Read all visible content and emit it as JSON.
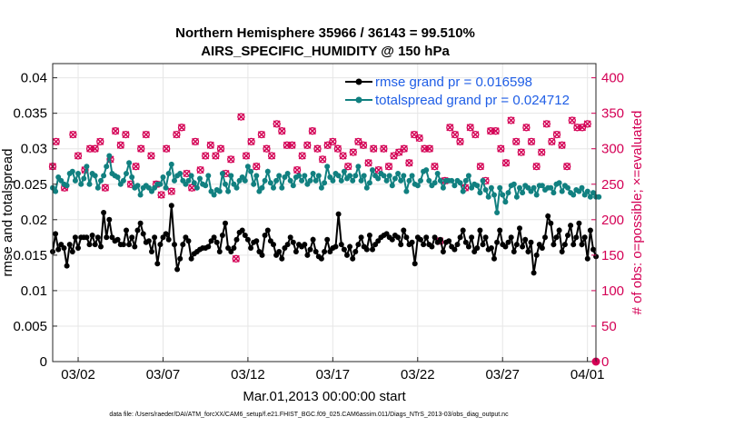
{
  "chart_data": {
    "type": "line",
    "title": "Northern Hemisphere 35966 / 36143 = 99.510%",
    "subtitle": "AIRS_SPECIFIC_HUMIDITY @ 150 hPa",
    "xlabel": "Mar.01,2013 00:00:00 start",
    "ylabel": "rmse and totalspread",
    "ylabel_right": "# of obs: o=possible; ×=evaluated",
    "ylim": [
      0,
      0.042
    ],
    "ylim_right": [
      0,
      420
    ],
    "xlim_days": [
      -0.5,
      31.5
    ],
    "y_ticks": [
      "0",
      "0.005",
      "0.01",
      "0.015",
      "0.02",
      "0.025",
      "0.03",
      "0.035",
      "0.04"
    ],
    "y_tick_values": [
      0,
      0.005,
      0.01,
      0.015,
      0.02,
      0.025,
      0.03,
      0.035,
      0.04
    ],
    "y_right_ticks": [
      "0",
      "50",
      "100",
      "150",
      "200",
      "250",
      "300",
      "350",
      "400"
    ],
    "y_right_tick_values": [
      0,
      50,
      100,
      150,
      200,
      250,
      300,
      350,
      400
    ],
    "x_ticks": [
      "03/02",
      "03/07",
      "03/12",
      "03/17",
      "03/22",
      "03/27",
      "04/01"
    ],
    "x_tick_days": [
      1,
      6,
      11,
      16,
      21,
      26,
      31
    ],
    "grid": true,
    "legend": "top-right",
    "series": [
      {
        "name": "rmse grand pr = 0.016598",
        "color": "#000000",
        "marker": "dot",
        "values": [
          0.0155,
          0.018,
          0.0158,
          0.0165,
          0.016,
          0.0135,
          0.0165,
          0.0155,
          0.0175,
          0.016,
          0.0175,
          0.0175,
          0.0175,
          0.0165,
          0.0178,
          0.0165,
          0.0175,
          0.0162,
          0.021,
          0.0175,
          0.02,
          0.0175,
          0.017,
          0.0172,
          0.0165,
          0.0165,
          0.0185,
          0.0165,
          0.0175,
          0.0162,
          0.0185,
          0.0195,
          0.018,
          0.0168,
          0.017,
          0.0155,
          0.0175,
          0.0138,
          0.0165,
          0.0175,
          0.018,
          0.0172,
          0.022,
          0.0165,
          0.013,
          0.0145,
          0.0165,
          0.0175,
          0.017,
          0.0145,
          0.0152,
          0.0155,
          0.0158,
          0.016,
          0.016,
          0.0162,
          0.017,
          0.0175,
          0.0168,
          0.0155,
          0.0178,
          0.0195,
          0.016,
          0.0155,
          0.016,
          0.0172,
          0.0182,
          0.0185,
          0.0178,
          0.0172,
          0.016,
          0.0168,
          0.017,
          0.0155,
          0.015,
          0.0178,
          0.0185,
          0.017,
          0.0165,
          0.015,
          0.0155,
          0.0145,
          0.016,
          0.0165,
          0.0175,
          0.0168,
          0.0155,
          0.0165,
          0.0162,
          0.0165,
          0.015,
          0.0158,
          0.0172,
          0.0155,
          0.0148,
          0.0145,
          0.0155,
          0.0172,
          0.0155,
          0.016,
          0.0162,
          0.0208,
          0.0165,
          0.0158,
          0.015,
          0.0162,
          0.0145,
          0.0155,
          0.0165,
          0.0175,
          0.0162,
          0.0158,
          0.0178,
          0.0158,
          0.0165,
          0.017,
          0.0175,
          0.0178,
          0.018,
          0.0175,
          0.0172,
          0.0178,
          0.0175,
          0.0165,
          0.0185,
          0.0175,
          0.0165,
          0.0168,
          0.0138,
          0.0175,
          0.0172,
          0.0165,
          0.0175,
          0.0165,
          0.0162,
          0.0175,
          0.0168,
          0.0172,
          0.0155,
          0.0168,
          0.017,
          0.0162,
          0.0158,
          0.0165,
          0.0175,
          0.0185,
          0.0168,
          0.0162,
          0.0175,
          0.0155,
          0.016,
          0.0185,
          0.0165,
          0.0175,
          0.0158,
          0.016,
          0.0145,
          0.0168,
          0.0185,
          0.0165,
          0.0162,
          0.0168,
          0.0175,
          0.0155,
          0.0165,
          0.0188,
          0.0162,
          0.0172,
          0.0155,
          0.0168,
          0.0125,
          0.015,
          0.0165,
          0.016,
          0.0175,
          0.0205,
          0.0195,
          0.0165,
          0.0175,
          0.0185,
          0.0155,
          0.0165,
          0.0178,
          0.0192,
          0.0165,
          0.0175,
          0.0195,
          0.0165,
          0.0175,
          0.0145,
          0.0185,
          0.0158,
          0.0148
        ],
        "x_start_day": -0.5,
        "x_step_day": 0.1667
      },
      {
        "name": "totalspread grand pr = 0.024712",
        "color": "#118080",
        "marker": "dot",
        "values": [
          0.0245,
          0.024,
          0.026,
          0.0255,
          0.025,
          0.0248,
          0.0265,
          0.0268,
          0.0255,
          0.0265,
          0.025,
          0.0258,
          0.0275,
          0.025,
          0.0265,
          0.0262,
          0.0245,
          0.0255,
          0.0262,
          0.0275,
          0.029,
          0.0265,
          0.0262,
          0.026,
          0.025,
          0.0255,
          0.0265,
          0.028,
          0.026,
          0.0245,
          0.0248,
          0.0235,
          0.0245,
          0.0248,
          0.0245,
          0.024,
          0.0245,
          0.025,
          0.025,
          0.026,
          0.0245,
          0.0265,
          0.0278,
          0.0255,
          0.0262,
          0.0265,
          0.0255,
          0.025,
          0.0255,
          0.0262,
          0.0252,
          0.0245,
          0.0258,
          0.025,
          0.0248,
          0.0262,
          0.024,
          0.0235,
          0.0242,
          0.024,
          0.0265,
          0.025,
          0.024,
          0.0262,
          0.025,
          0.0245,
          0.0255,
          0.026,
          0.0255,
          0.0275,
          0.0268,
          0.025,
          0.0262,
          0.024,
          0.0245,
          0.0255,
          0.0268,
          0.0252,
          0.0245,
          0.0255,
          0.0262,
          0.0245,
          0.026,
          0.0265,
          0.0255,
          0.0248,
          0.026,
          0.0262,
          0.0255,
          0.0262,
          0.025,
          0.0255,
          0.0265,
          0.0255,
          0.0262,
          0.0245,
          0.0252,
          0.0275,
          0.026,
          0.0255,
          0.0265,
          0.0262,
          0.0255,
          0.0268,
          0.0258,
          0.0262,
          0.0255,
          0.0262,
          0.0275,
          0.0255,
          0.0262,
          0.0245,
          0.0252,
          0.027,
          0.0262,
          0.0258,
          0.0265,
          0.0262,
          0.0255,
          0.0262,
          0.0248,
          0.0258,
          0.0265,
          0.0255,
          0.0262,
          0.024,
          0.0255,
          0.0262,
          0.025,
          0.0248,
          0.0255,
          0.0268,
          0.027,
          0.0255,
          0.0248,
          0.0252,
          0.0265,
          0.0255,
          0.0245,
          0.0255,
          0.0255,
          0.0255,
          0.0248,
          0.0255,
          0.0252,
          0.024,
          0.0255,
          0.0262,
          0.0245,
          0.025,
          0.0248,
          0.0238,
          0.0255,
          0.0242,
          0.0232,
          0.0245,
          0.0235,
          0.021,
          0.0245,
          0.0235,
          0.0225,
          0.0238,
          0.0248,
          0.025,
          0.0232,
          0.0245,
          0.0238,
          0.0248,
          0.0245,
          0.024,
          0.0245,
          0.0235,
          0.0248,
          0.0248,
          0.0242,
          0.0245,
          0.0245,
          0.0238,
          0.025,
          0.0252,
          0.024,
          0.0248,
          0.0245,
          0.0238,
          0.0235,
          0.0242,
          0.024,
          0.0245,
          0.0235,
          0.024,
          0.0232,
          0.0238,
          0.0232,
          0.0232
        ],
        "x_start_day": -0.5,
        "x_step_day": 0.1667
      },
      {
        "name": "# of obs",
        "color": "#d40055",
        "marker": "o-and-x",
        "axis": "right",
        "points": [
          [
            -0.5,
            275
          ],
          [
            -0.3,
            310
          ],
          [
            0.2,
            245
          ],
          [
            0.7,
            320
          ],
          [
            1.0,
            290
          ],
          [
            1.4,
            270
          ],
          [
            1.7,
            300
          ],
          [
            2.0,
            300
          ],
          [
            2.3,
            310
          ],
          [
            2.6,
            245
          ],
          [
            2.9,
            285
          ],
          [
            3.2,
            325
          ],
          [
            3.5,
            305
          ],
          [
            3.8,
            320
          ],
          [
            4.1,
            250
          ],
          [
            4.4,
            275
          ],
          [
            4.7,
            300
          ],
          [
            5.0,
            320
          ],
          [
            5.3,
            290
          ],
          [
            5.6,
            250
          ],
          [
            5.9,
            235
          ],
          [
            6.2,
            300
          ],
          [
            6.5,
            240
          ],
          [
            6.8,
            320
          ],
          [
            7.1,
            330
          ],
          [
            7.4,
            265
          ],
          [
            7.7,
            245
          ],
          [
            7.9,
            310
          ],
          [
            8.2,
            270
          ],
          [
            8.5,
            290
          ],
          [
            8.8,
            305
          ],
          [
            9.1,
            290
          ],
          [
            9.4,
            300
          ],
          [
            9.7,
            265
          ],
          [
            10.0,
            285
          ],
          [
            10.3,
            145
          ],
          [
            10.6,
            345
          ],
          [
            10.9,
            290
          ],
          [
            11.2,
            310
          ],
          [
            11.5,
            275
          ],
          [
            11.8,
            320
          ],
          [
            12.1,
            300
          ],
          [
            12.4,
            290
          ],
          [
            12.7,
            335
          ],
          [
            13.0,
            325
          ],
          [
            13.3,
            305
          ],
          [
            13.6,
            305
          ],
          [
            13.9,
            270
          ],
          [
            14.2,
            290
          ],
          [
            14.5,
            305
          ],
          [
            14.8,
            325
          ],
          [
            15.1,
            300
          ],
          [
            15.4,
            285
          ],
          [
            15.7,
            305
          ],
          [
            16.0,
            310
          ],
          [
            16.3,
            300
          ],
          [
            16.6,
            290
          ],
          [
            16.9,
            275
          ],
          [
            17.2,
            295
          ],
          [
            17.5,
            310
          ],
          [
            17.8,
            305
          ],
          [
            18.1,
            280
          ],
          [
            18.4,
            300
          ],
          [
            18.7,
            270
          ],
          [
            19.0,
            300
          ],
          [
            19.3,
            275
          ],
          [
            19.6,
            290
          ],
          [
            19.9,
            295
          ],
          [
            20.2,
            300
          ],
          [
            20.5,
            280
          ],
          [
            20.8,
            320
          ],
          [
            21.1,
            315
          ],
          [
            21.4,
            300
          ],
          [
            21.7,
            300
          ],
          [
            22.0,
            275
          ],
          [
            22.3,
            170
          ],
          [
            22.6,
            255
          ],
          [
            22.9,
            330
          ],
          [
            23.2,
            320
          ],
          [
            23.5,
            310
          ],
          [
            23.8,
            245
          ],
          [
            24.1,
            330
          ],
          [
            24.4,
            320
          ],
          [
            24.7,
            275
          ],
          [
            25.0,
            255
          ],
          [
            25.3,
            325
          ],
          [
            25.6,
            325
          ],
          [
            25.9,
            300
          ],
          [
            26.2,
            280
          ],
          [
            26.5,
            340
          ],
          [
            26.8,
            310
          ],
          [
            27.1,
            295
          ],
          [
            27.4,
            330
          ],
          [
            27.7,
            310
          ],
          [
            28.0,
            275
          ],
          [
            28.3,
            295
          ],
          [
            28.6,
            335
          ],
          [
            28.9,
            310
          ],
          [
            29.2,
            320
          ],
          [
            29.5,
            305
          ],
          [
            29.8,
            275
          ],
          [
            30.1,
            340
          ],
          [
            30.4,
            330
          ],
          [
            30.7,
            330
          ],
          [
            31.0,
            335
          ]
        ]
      }
    ]
  },
  "legend": {
    "rmse_label": "rmse grand pr = 0.016598",
    "spread_label": "totalspread grand pr = 0.024712"
  },
  "footer": {
    "text": "data file: /Users/raeder/DAI/ATM_forcXX/CAM6_setup/f.e21.FHIST_BGC.f09_025.CAM6assim.011/Diags_NTrS_2013-03/obs_diag_output.nc"
  },
  "colors": {
    "rmse": "#000000",
    "spread": "#118080",
    "obs": "#d40055",
    "legend_text": "#1f5ee6",
    "grid": "#e6e6e6"
  }
}
